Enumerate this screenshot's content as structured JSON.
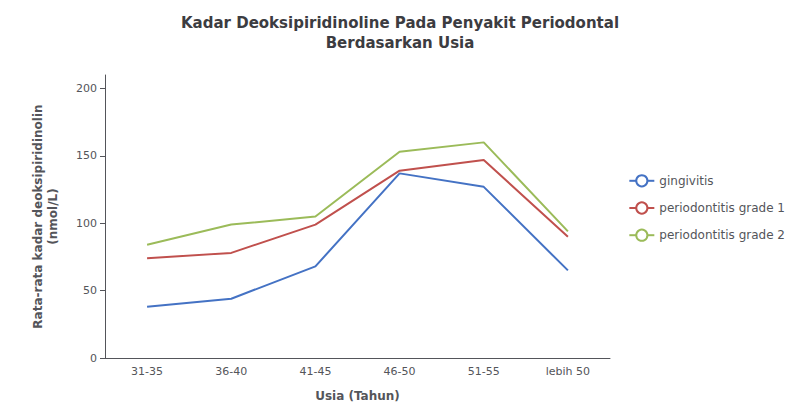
{
  "chart_data": {
    "type": "line",
    "title": "Kadar Deoksipiridinoline Pada Penyakit Periodontal\nBerdasarkan Usia",
    "xlabel": "Usia (Tahun)",
    "ylabel": "Rata-rata kadar deoksipiridinolin\n(nmol/L)",
    "categories": [
      "31-35",
      "36-40",
      "41-45",
      "46-50",
      "51-55",
      "lebih 50"
    ],
    "series": [
      {
        "name": "gingivitis",
        "color": "#4472C4",
        "values": [
          38,
          44,
          68,
          137,
          127,
          65
        ]
      },
      {
        "name": "periodontitis grade 1",
        "color": "#C0504D",
        "values": [
          74,
          78,
          99,
          139,
          147,
          90
        ]
      },
      {
        "name": "periodontitis grade 2",
        "color": "#9BBB59",
        "values": [
          84,
          99,
          105,
          153,
          160,
          94
        ]
      }
    ],
    "ylim": [
      0,
      210
    ],
    "yticks": [
      0,
      50,
      100,
      150,
      200
    ],
    "grid": false,
    "legend": "right"
  }
}
